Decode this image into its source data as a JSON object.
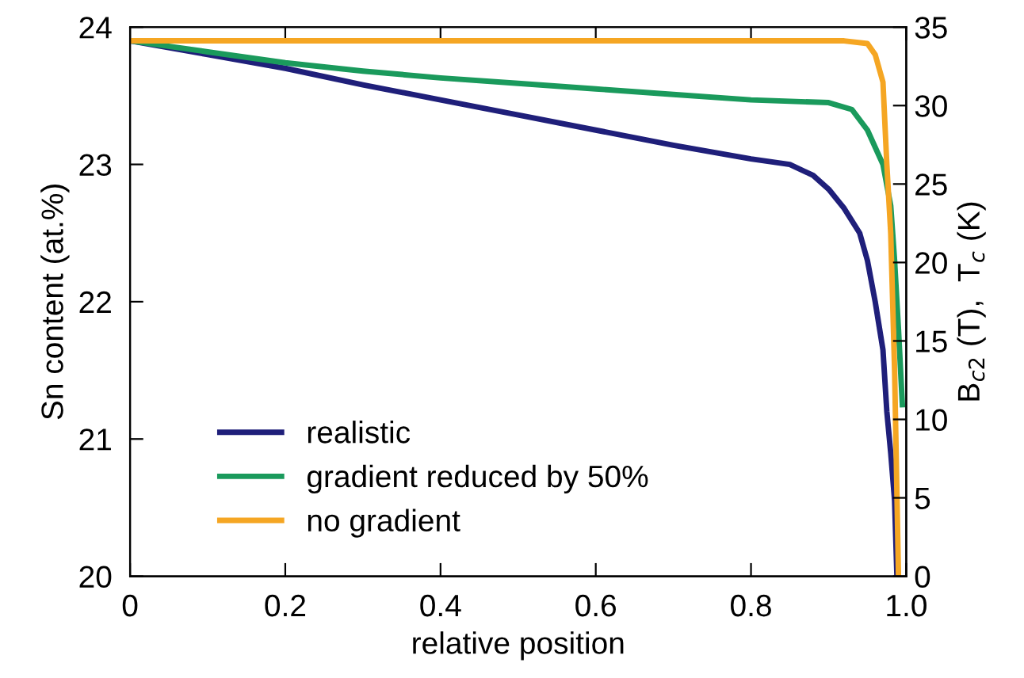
{
  "chart_data": {
    "type": "line",
    "xlabel": "relative position",
    "ylabel": "Sn content (at.%)",
    "y2label": "B$_{c2}$ (T),  T$_{c}$ (K)",
    "xlim": [
      0,
      1
    ],
    "xticks": [
      0,
      0.2,
      0.4,
      0.6,
      0.8,
      {
        "value": 1,
        "label": "1.0"
      }
    ],
    "ylim": [
      20,
      24
    ],
    "yticks": [
      20,
      21,
      22,
      23,
      24
    ],
    "y2lim": [
      0,
      35
    ],
    "y2ticks": [
      0,
      5,
      10,
      15,
      20,
      25,
      30,
      35
    ],
    "legend": "bottom left",
    "grid": false,
    "marker": "none",
    "line_style": "solid",
    "series": [
      {
        "name": "realistic",
        "color": "#1f1f7a",
        "x": [
          0,
          0.1,
          0.2,
          0.3,
          0.4,
          0.5,
          0.6,
          0.7,
          0.8,
          0.85,
          0.88,
          0.9,
          0.92,
          0.94,
          0.95,
          0.96,
          0.97,
          0.975,
          0.98,
          0.985,
          0.988
        ],
        "values": [
          23.9,
          23.8,
          23.7,
          23.58,
          23.47,
          23.36,
          23.25,
          23.14,
          23.04,
          23.0,
          22.92,
          22.82,
          22.68,
          22.5,
          22.3,
          22.0,
          21.65,
          21.2,
          20.9,
          20.55,
          20.0
        ]
      },
      {
        "name": "gradient reduced by 50%",
        "color": "#1a9a5c",
        "x": [
          0,
          0.1,
          0.2,
          0.3,
          0.4,
          0.5,
          0.6,
          0.7,
          0.8,
          0.9,
          0.93,
          0.95,
          0.97,
          0.98,
          0.985,
          0.99,
          0.995
        ],
        "values": [
          23.9,
          23.82,
          23.74,
          23.68,
          23.63,
          23.59,
          23.55,
          23.51,
          23.47,
          23.45,
          23.4,
          23.25,
          23.0,
          22.7,
          22.3,
          21.8,
          21.25
        ]
      },
      {
        "name": "no gradient",
        "color": "#f5a623",
        "x": [
          0,
          0.5,
          0.92,
          0.95,
          0.96,
          0.97,
          0.975,
          0.98,
          0.985,
          0.99
        ],
        "values": [
          23.9,
          23.9,
          23.9,
          23.88,
          23.8,
          23.6,
          23.0,
          22.5,
          21.5,
          20.0
        ]
      }
    ]
  }
}
